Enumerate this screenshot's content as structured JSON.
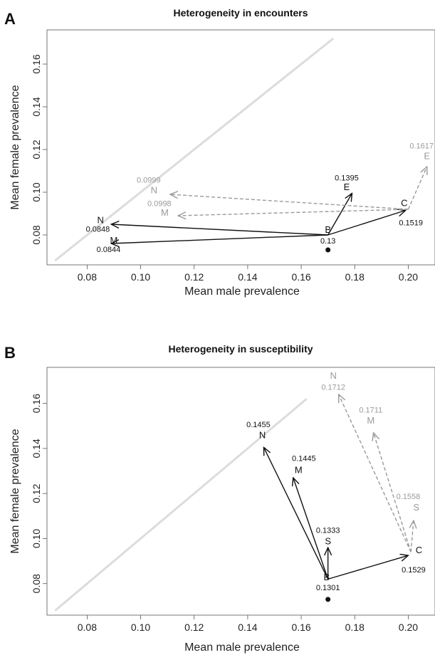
{
  "chart_data": [
    {
      "type": "scatter",
      "panel_label": "A",
      "title": "Heterogeneity in encounters",
      "xlabel": "Mean male prevalence",
      "ylabel": "Mean female prevalence",
      "xlim": [
        0.065,
        0.21
      ],
      "ylim": [
        0.066,
        0.176
      ],
      "xticks": [
        0.08,
        0.1,
        0.12,
        0.14,
        0.16,
        0.18,
        0.2
      ],
      "yticks": [
        0.08,
        0.1,
        0.12,
        0.14,
        0.16
      ],
      "xtick_labels": [
        "0.08",
        "0.10",
        "0.12",
        "0.14",
        "0.16",
        "0.18",
        "0.20"
      ],
      "ytick_labels": [
        "0.08",
        "0.10",
        "0.12",
        "0.14",
        "0.16"
      ],
      "grid": false,
      "diagonal": {
        "x": [
          0.068,
          0.172
        ],
        "y": [
          0.068,
          0.172
        ]
      },
      "baseline_point": {
        "x": 0.17,
        "y": 0.073
      },
      "points": [
        {
          "name": "B",
          "value": "0.13",
          "x": 0.17,
          "y": 0.08,
          "label_x": 0.17,
          "label_y": 0.081,
          "value_x": 0.17,
          "value_y": 0.076
        },
        {
          "name": "C",
          "value": "0.1519",
          "x": 0.2,
          "y": 0.092,
          "label_x": 0.1985,
          "label_y": 0.0935,
          "value_x": 0.201,
          "value_y": 0.0845
        }
      ],
      "arrows": [
        {
          "from": "B",
          "series": "black",
          "name": "N",
          "value": "0.0848",
          "x": 0.089,
          "y": 0.085,
          "label_x": 0.085,
          "label_y": 0.0855,
          "value_x": 0.084,
          "value_y": 0.0815
        },
        {
          "from": "B",
          "series": "black",
          "name": "M",
          "value": "0.0844",
          "x": 0.089,
          "y": 0.076,
          "label_x": 0.09,
          "label_y": 0.076,
          "value_x": 0.088,
          "value_y": 0.072
        },
        {
          "from": "B",
          "series": "black",
          "name": "E",
          "value": "0.1395",
          "x": 0.179,
          "y": 0.0995,
          "label_x": 0.177,
          "label_y": 0.101,
          "value_x": 0.177,
          "value_y": 0.1055
        },
        {
          "from": "B",
          "series": "black",
          "name": "C",
          "value": "",
          "x": 0.199,
          "y": 0.0915,
          "label_x": null,
          "label_y": null,
          "value_x": null,
          "value_y": null
        },
        {
          "from": "C",
          "series": "grey",
          "name": "N",
          "value": "0.0999",
          "x": 0.111,
          "y": 0.099,
          "label_x": 0.105,
          "label_y": 0.0995,
          "value_x": 0.103,
          "value_y": 0.1045
        },
        {
          "from": "C",
          "series": "grey",
          "name": "M",
          "value": "0.0998",
          "x": 0.114,
          "y": 0.089,
          "label_x": 0.109,
          "label_y": 0.089,
          "value_x": 0.107,
          "value_y": 0.0935
        },
        {
          "from": "C",
          "series": "grey",
          "name": "E",
          "value": "0.1617",
          "x": 0.207,
          "y": 0.112,
          "label_x": 0.207,
          "label_y": 0.1155,
          "value_x": 0.205,
          "value_y": 0.1205
        }
      ]
    },
    {
      "type": "scatter",
      "panel_label": "B",
      "title": "Heterogeneity in susceptibility",
      "xlabel": "Mean male prevalence",
      "ylabel": "Mean female prevalence",
      "xlim": [
        0.065,
        0.21
      ],
      "ylim": [
        0.066,
        0.176
      ],
      "xticks": [
        0.08,
        0.1,
        0.12,
        0.14,
        0.16,
        0.18,
        0.2
      ],
      "yticks": [
        0.08,
        0.1,
        0.12,
        0.14,
        0.16
      ],
      "xtick_labels": [
        "0.08",
        "0.10",
        "0.12",
        "0.14",
        "0.16",
        "0.18",
        "0.20"
      ],
      "ytick_labels": [
        "0.08",
        "0.10",
        "0.12",
        "0.14",
        "0.16"
      ],
      "grid": false,
      "diagonal": {
        "x": [
          0.068,
          0.162
        ],
        "y": [
          0.068,
          0.162
        ]
      },
      "baseline_point": {
        "x": 0.17,
        "y": 0.073
      },
      "points": [
        {
          "name": "B",
          "value": "0.1301",
          "x": 0.17,
          "y": 0.082,
          "label_x": 0.1695,
          "label_y": 0.0815,
          "value_x": 0.17,
          "value_y": 0.077
        },
        {
          "name": "C",
          "value": "0.1529",
          "x": 0.201,
          "y": 0.094,
          "label_x": 0.204,
          "label_y": 0.0935,
          "value_x": 0.202,
          "value_y": 0.085
        }
      ],
      "arrows": [
        {
          "from": "B",
          "series": "black",
          "name": "N",
          "value": "0.1455",
          "x": 0.146,
          "y": 0.1405,
          "label_x": 0.1455,
          "label_y": 0.1445,
          "value_x": 0.144,
          "value_y": 0.1495
        },
        {
          "from": "B",
          "series": "black",
          "name": "M",
          "value": "0.1445",
          "x": 0.157,
          "y": 0.127,
          "label_x": 0.159,
          "label_y": 0.129,
          "value_x": 0.161,
          "value_y": 0.1345
        },
        {
          "from": "B",
          "series": "black",
          "name": "S",
          "value": "0.1333",
          "x": 0.17,
          "y": 0.096,
          "label_x": 0.17,
          "label_y": 0.0975,
          "value_x": 0.17,
          "value_y": 0.1025
        },
        {
          "from": "B",
          "series": "black",
          "name": "C",
          "value": "",
          "x": 0.2,
          "y": 0.0925,
          "label_x": null,
          "label_y": null,
          "value_x": null,
          "value_y": null
        },
        {
          "from": "C",
          "series": "grey",
          "name": "N",
          "value": "0.1712",
          "x": 0.174,
          "y": 0.164,
          "label_x": 0.172,
          "label_y": 0.171,
          "value_x": 0.172,
          "value_y": 0.166
        },
        {
          "from": "C",
          "series": "grey",
          "name": "M",
          "value": "0.1711",
          "x": 0.187,
          "y": 0.147,
          "label_x": 0.186,
          "label_y": 0.151,
          "value_x": 0.186,
          "value_y": 0.156
        },
        {
          "from": "C",
          "series": "grey",
          "name": "S",
          "value": "0.1558",
          "x": 0.202,
          "y": 0.108,
          "label_x": 0.203,
          "label_y": 0.1125,
          "value_x": 0.2,
          "value_y": 0.1175
        }
      ]
    }
  ],
  "colors": {
    "black_series": "#111111",
    "grey_series": "#9a9a9a",
    "diagonal": "#dcdcdc",
    "axis": "#555555"
  }
}
